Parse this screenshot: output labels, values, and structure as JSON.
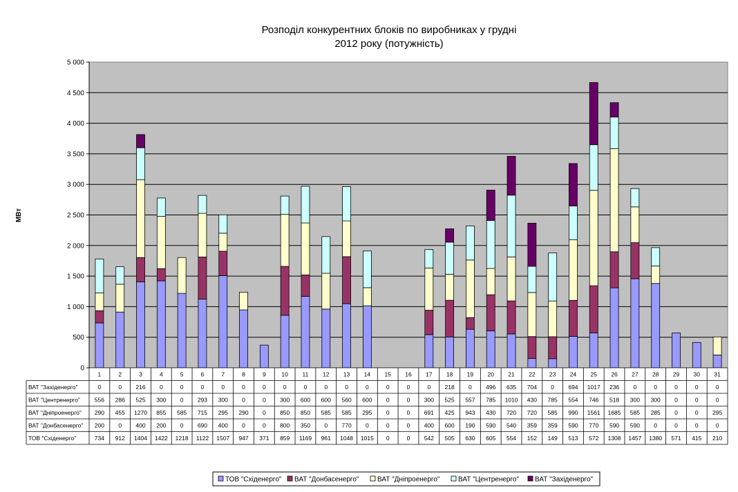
{
  "chart_data": {
    "type": "bar",
    "stacked": true,
    "title_lines": [
      "Розподіл конкурентних блоків по виробниках у грудні",
      "2012 року (потужність)"
    ],
    "ylabel": "МВт",
    "ylim": [
      0,
      5000
    ],
    "yticks": [
      "0",
      "500",
      "1 000",
      "1 500",
      "2 000",
      "2 500",
      "3 000",
      "3 500",
      "4 000",
      "4 500",
      "5 000"
    ],
    "ytick_values": [
      0,
      500,
      1000,
      1500,
      2000,
      2500,
      3000,
      3500,
      4000,
      4500,
      5000
    ],
    "grid": true,
    "legend_position": "bottom",
    "categories": [
      "1",
      "2",
      "3",
      "4",
      "5",
      "6",
      "7",
      "8",
      "9",
      "10",
      "11",
      "12",
      "13",
      "14",
      "15",
      "16",
      "17",
      "18",
      "19",
      "20",
      "21",
      "22",
      "23",
      "24",
      "25",
      "26",
      "27",
      "28",
      "29",
      "30",
      "31"
    ],
    "series": [
      {
        "name": "ТОВ \"Східенерго\"",
        "color": "#9999ff",
        "values": [
          734,
          912,
          1404,
          1422,
          1218,
          1122,
          1507,
          947,
          371,
          859,
          1169,
          961,
          1048,
          1015,
          0,
          0,
          542,
          505,
          630,
          605,
          554,
          152,
          149,
          513,
          572,
          1308,
          1457,
          1380,
          571,
          415,
          210
        ]
      },
      {
        "name": "ВАТ \"Донбасенерго\"",
        "color": "#993366",
        "values": [
          200,
          0,
          400,
          200,
          0,
          690,
          400,
          0,
          0,
          800,
          350,
          0,
          770,
          0,
          0,
          0,
          400,
          600,
          190,
          590,
          540,
          359,
          359,
          590,
          770,
          590,
          590,
          0,
          0,
          0,
          0
        ]
      },
      {
        "name": "ВАТ \"Дніпроенерго\"",
        "color": "#ffffcc",
        "values": [
          290,
          455,
          1270,
          855,
          585,
          715,
          295,
          290,
          0,
          850,
          850,
          585,
          585,
          295,
          0,
          0,
          691,
          425,
          943,
          430,
          720,
          720,
          585,
          990,
          1561,
          1685,
          585,
          285,
          0,
          0,
          295
        ]
      },
      {
        "name": "ВАТ \"Центренерго\"",
        "color": "#ccffff",
        "values": [
          556,
          286,
          525,
          300,
          0,
          293,
          300,
          0,
          0,
          300,
          600,
          600,
          560,
          600,
          0,
          0,
          300,
          525,
          557,
          785,
          1010,
          430,
          785,
          554,
          746,
          518,
          300,
          300,
          0,
          0,
          0
        ]
      },
      {
        "name": "ВАТ \"Західенерго\"",
        "color": "#660066",
        "values": [
          0,
          0,
          216,
          0,
          0,
          0,
          0,
          0,
          0,
          0,
          0,
          0,
          0,
          0,
          0,
          0,
          0,
          218,
          0,
          496,
          635,
          704,
          0,
          694,
          1017,
          236,
          0,
          0,
          0,
          0,
          0
        ]
      }
    ],
    "table_rows_order": [
      4,
      3,
      2,
      1,
      0
    ]
  }
}
